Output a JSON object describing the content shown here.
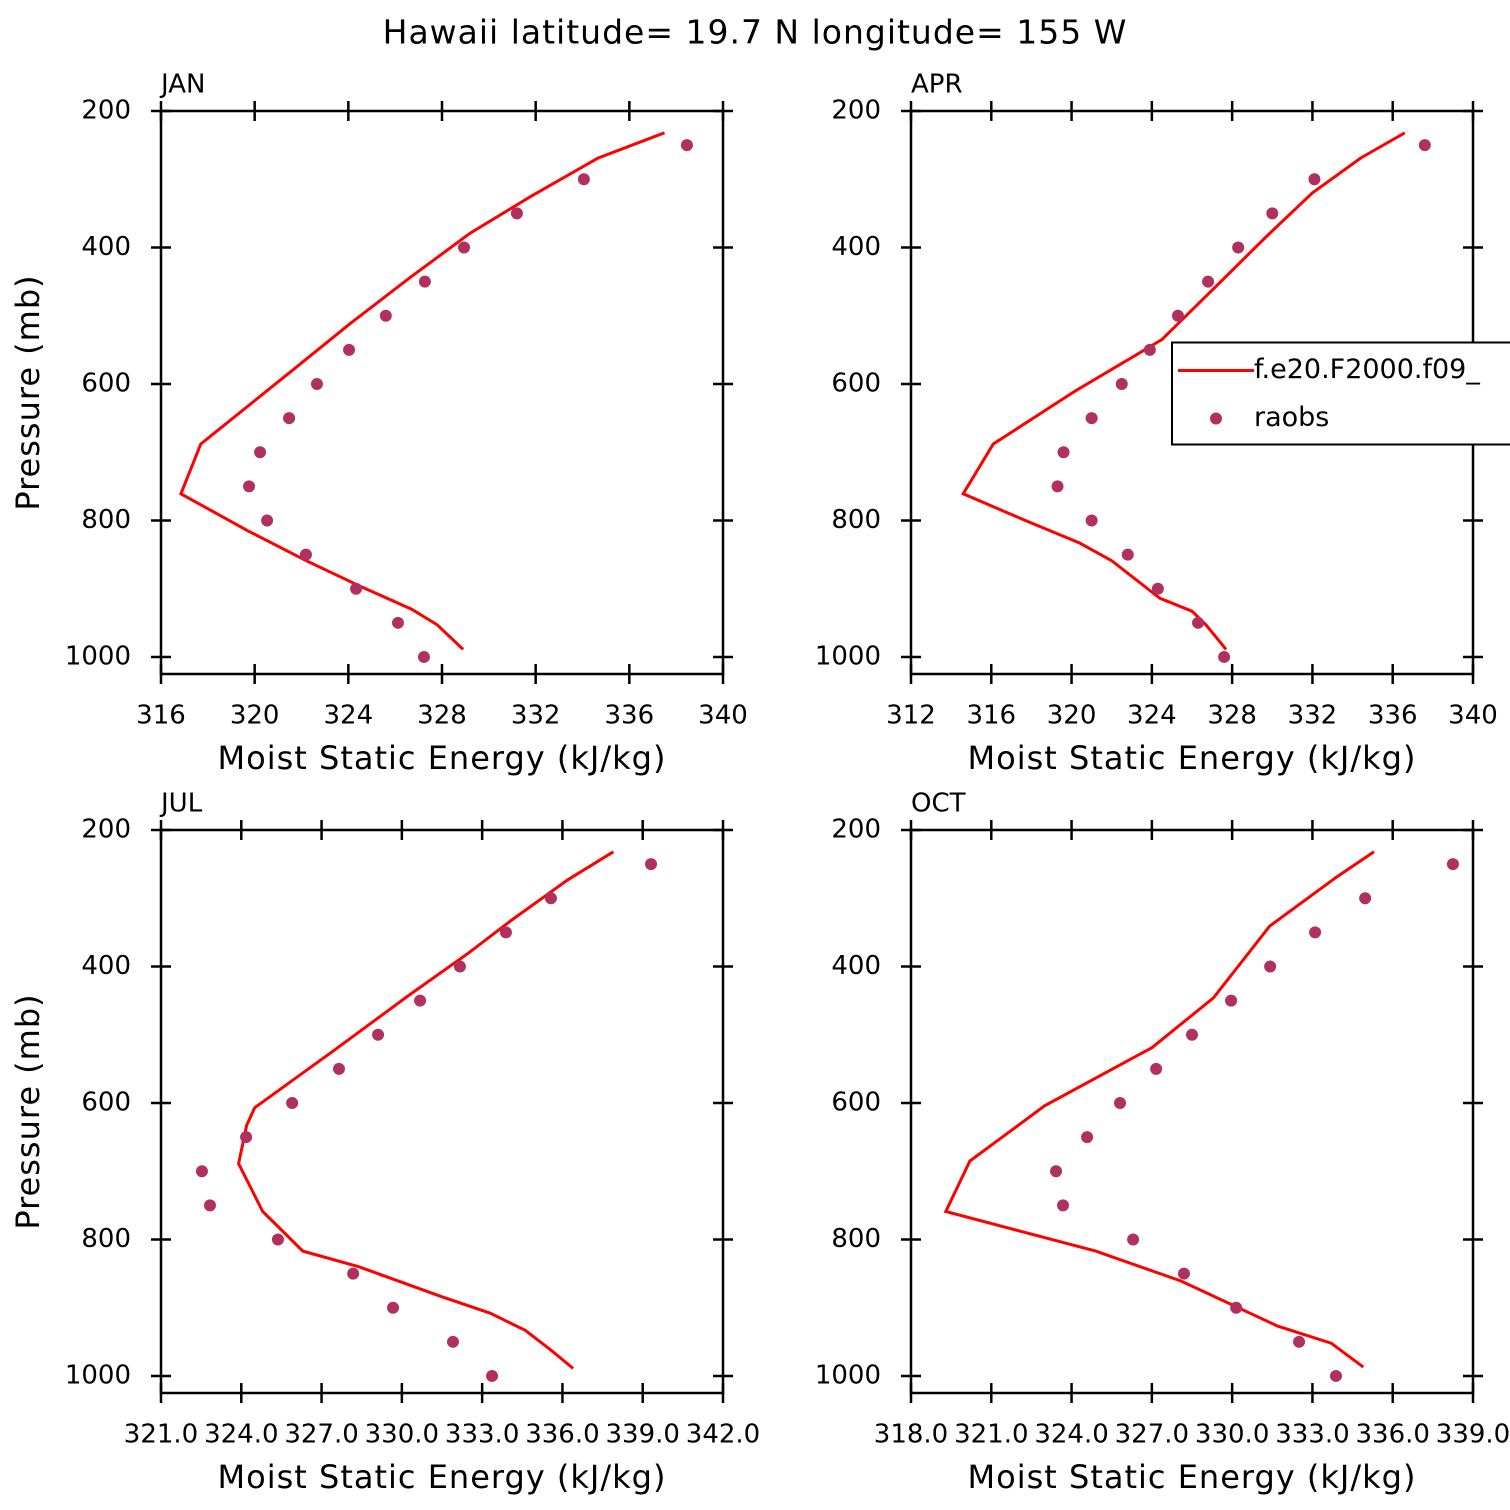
{
  "title": "Hawaii  latitude= 19.7 N longitude= 155 W",
  "chart_data": [
    {
      "type": "line-scatter",
      "title": "JAN",
      "xlabel": "Moist Static Energy (kJ/kg)",
      "ylabel": "Pressure (mb)",
      "xlim": [
        316,
        340
      ],
      "xticks": [
        316,
        320,
        324,
        328,
        332,
        336,
        340
      ],
      "ylim": [
        200,
        1025
      ],
      "yticks": [
        200,
        400,
        600,
        800,
        1000
      ],
      "y_inverted": true,
      "series": [
        {
          "style": "line",
          "color": "#ff0000",
          "x": [
            337.5,
            334.66,
            331.8,
            329.2,
            326.6,
            324.1,
            321.5,
            317.7,
            316.85,
            319.7,
            322.2,
            324.6,
            326.7,
            327.8,
            328.9
          ],
          "y": [
            232,
            269,
            325,
            379,
            445,
            511,
            583,
            688,
            761,
            815,
            859,
            898,
            930,
            953,
            989
          ]
        },
        {
          "style": "marker",
          "color": "#b03060",
          "x": [
            338.46,
            334.06,
            331.2,
            328.94,
            327.27,
            325.6,
            324.03,
            322.66,
            321.47,
            320.23,
            319.76,
            320.53,
            322.19,
            324.33,
            326.12,
            327.23
          ],
          "y": [
            250,
            300,
            350,
            400,
            450,
            500,
            550,
            600,
            650,
            700,
            750,
            800,
            850,
            900,
            950,
            1000
          ]
        }
      ]
    },
    {
      "type": "line-scatter",
      "title": "APR",
      "xlabel": "Moist Static Energy (kJ/kg)",
      "xlim": [
        312,
        340
      ],
      "xticks": [
        312,
        316,
        320,
        324,
        328,
        332,
        336,
        340
      ],
      "ylim": [
        200,
        1025
      ],
      "yticks": [
        200,
        400,
        600,
        800,
        1000
      ],
      "y_inverted": true,
      "legend": "center-right",
      "series": [
        {
          "name": "f.e20.F2000.f09_",
          "style": "line",
          "color": "#ff0000",
          "x": [
            336.6,
            334.4,
            332.0,
            329.7,
            327.4,
            324.5,
            320.2,
            316.1,
            314.6,
            317.7,
            320.4,
            322.0,
            324.4,
            326.0,
            326.7,
            327.7
          ],
          "y": [
            232,
            269,
            320,
            384,
            451,
            535,
            610,
            688,
            761,
            800,
            833,
            859,
            914,
            933,
            953,
            989
          ]
        },
        {
          "name": "raobs",
          "style": "marker",
          "color": "#b03060",
          "x": [
            337.6,
            332.1,
            330.0,
            328.3,
            326.8,
            325.3,
            323.9,
            322.5,
            321.0,
            319.6,
            319.3,
            321.0,
            322.8,
            324.3,
            326.3,
            327.6
          ],
          "y": [
            250,
            300,
            350,
            400,
            450,
            500,
            550,
            600,
            650,
            700,
            750,
            800,
            850,
            900,
            950,
            1000
          ]
        }
      ]
    },
    {
      "type": "line-scatter",
      "title": "JUL",
      "xlabel": "Moist Static Energy (kJ/kg)",
      "ylabel": "Pressure (mb)",
      "xlim": [
        321,
        342
      ],
      "xticks": [
        {
          "value": 321,
          "label": "321.0"
        },
        {
          "value": 324,
          "label": "324.0"
        },
        {
          "value": 327,
          "label": "327.0"
        },
        {
          "value": 330,
          "label": "330.0"
        },
        {
          "value": 333,
          "label": "333.0"
        },
        {
          "value": 336,
          "label": "336.0"
        },
        {
          "value": 339,
          "label": "339.0"
        },
        {
          "value": 342,
          "label": "342.0"
        }
      ],
      "ylim": [
        200,
        1025
      ],
      "yticks": [
        200,
        400,
        600,
        800,
        1000
      ],
      "y_inverted": true,
      "series": [
        {
          "style": "line",
          "color": "#ff0000",
          "x": [
            337.9,
            336.2,
            334.1,
            332.5,
            330.2,
            327.5,
            324.5,
            324.2,
            323.9,
            324.8,
            326.3,
            328.4,
            331.5,
            333.3,
            334.6,
            335.5,
            336.4
          ],
          "y": [
            232,
            273,
            332,
            380,
            444,
            522,
            607,
            633,
            689,
            759,
            817,
            840,
            884,
            908,
            933,
            960,
            989
          ]
        },
        {
          "style": "marker",
          "color": "#b03060",
          "x": [
            339.31,
            335.57,
            333.89,
            332.17,
            330.68,
            329.11,
            327.65,
            325.9,
            324.18,
            322.53,
            322.83,
            325.37,
            328.18,
            329.67,
            331.91,
            333.37
          ],
          "y": [
            250,
            300,
            350,
            400,
            450,
            500,
            550,
            600,
            650,
            700,
            750,
            800,
            850,
            900,
            950,
            1000
          ]
        }
      ]
    },
    {
      "type": "line-scatter",
      "title": "OCT",
      "xlabel": "Moist Static Energy (kJ/kg)",
      "xlim": [
        318,
        339
      ],
      "xticks": [
        {
          "value": 318,
          "label": "318.0"
        },
        {
          "value": 321,
          "label": "321.0"
        },
        {
          "value": 324,
          "label": "324.0"
        },
        {
          "value": 327,
          "label": "327.0"
        },
        {
          "value": 330,
          "label": "330.0"
        },
        {
          "value": 333,
          "label": "333.0"
        },
        {
          "value": 336,
          "label": "336.0"
        },
        {
          "value": 339,
          "label": "339.0"
        }
      ],
      "ylim": [
        200,
        1025
      ],
      "yticks": [
        200,
        400,
        600,
        800,
        1000
      ],
      "y_inverted": true,
      "series": [
        {
          "style": "line",
          "color": "#ff0000",
          "x": [
            335.3,
            333.9,
            331.4,
            329.3,
            327.0,
            323.0,
            320.2,
            319.3,
            324.9,
            328.1,
            331.7,
            333.7,
            334.9
          ],
          "y": [
            232,
            269,
            341,
            446,
            519,
            604,
            685,
            759,
            817,
            861,
            927,
            952,
            987
          ]
        },
        {
          "style": "marker",
          "color": "#b03060",
          "x": [
            338.25,
            334.97,
            333.1,
            331.42,
            329.96,
            328.5,
            327.16,
            325.81,
            324.58,
            323.42,
            323.68,
            326.3,
            328.2,
            330.15,
            332.5,
            333.88
          ],
          "y": [
            250,
            300,
            350,
            400,
            450,
            500,
            550,
            600,
            650,
            700,
            750,
            800,
            850,
            900,
            950,
            1000
          ]
        }
      ]
    }
  ]
}
